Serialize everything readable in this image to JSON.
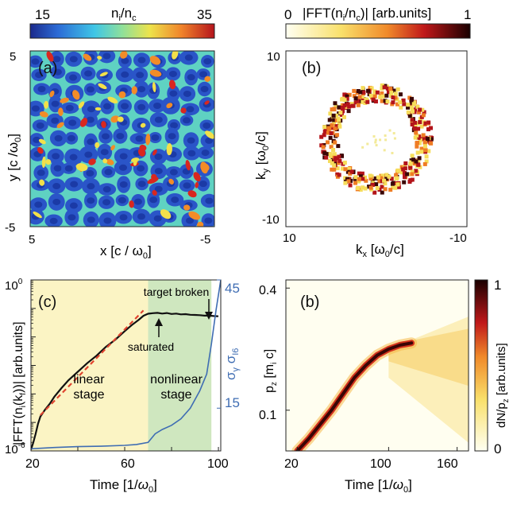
{
  "chart_data": [
    {
      "panel": "(a)",
      "type": "heatmap",
      "title": "",
      "colorbar": {
        "label_main": "n",
        "label_sub1": "i",
        "label_mid": "/n",
        "label_sub2": "c",
        "min": 15,
        "max": 35,
        "min_label": "15",
        "max_label": "35",
        "colormap": "jet"
      },
      "xlabel": "x [c / ω0]",
      "ylabel": "y [c / ω0]",
      "xlabel_parts": [
        "x [c / ω",
        "0",
        "]"
      ],
      "ylabel_parts": [
        "y [c /ω",
        "0",
        "]"
      ],
      "x_ticks": [
        "5",
        "-5"
      ],
      "y_ticks": [
        "5",
        "-5"
      ],
      "xlim": [
        5,
        -5
      ],
      "ylim": [
        -5,
        5
      ],
      "description_values": "cellular ion density filaments, values 15–35"
    },
    {
      "panel": "(b)",
      "type": "heatmap",
      "colorbar": {
        "label": "|FFT(n",
        "label_sub1": "i",
        "label_mid": "/n",
        "label_sub2": "c",
        "label_end": ")| [arb.units]",
        "min": 0,
        "max": 1,
        "min_label": "0",
        "max_label": "1",
        "colormap": "hot_r"
      },
      "xlabel_parts": [
        "k",
        "x",
        " [ω",
        "0",
        "/c]"
      ],
      "ylabel_parts": [
        "k",
        "y",
        " [ω",
        "0",
        "/c]"
      ],
      "x_ticks": [
        "10",
        "-10"
      ],
      "y_ticks": [
        "10",
        "-10"
      ],
      "xlim": [
        10,
        -10
      ],
      "ylim": [
        -10,
        10
      ],
      "ring_radius": 5.2
    },
    {
      "panel": "(c)",
      "type": "line",
      "xlabel_parts": [
        "Time [1/",
        "ω",
        "0",
        "]"
      ],
      "ylabel_left_parts": [
        "|FFT(n",
        "i",
        "(k",
        "f",
        "))|  [arb.units]"
      ],
      "ylabel_right_parts": [
        "σ",
        "γ",
        "  σ",
        "I6"
      ],
      "x_ticks": [
        "20",
        "60",
        "100"
      ],
      "xlim": [
        20,
        101
      ],
      "y_left": {
        "scale": "log",
        "lim": [
          1e-06,
          1
        ],
        "ticks": [
          {
            "base": "10",
            "exp": "0",
            "value": 1
          },
          {
            "base": "10",
            "exp": "-6",
            "value": 1e-06
          }
        ]
      },
      "y_right": {
        "lim": [
          5,
          45
        ],
        "ticks": [
          "45",
          "15"
        ],
        "tick_values": [
          45,
          15
        ]
      },
      "regions": [
        {
          "label_line1": "linear",
          "label_line2": "stage",
          "x0": 20,
          "x1": 70,
          "color": "#fbf4c4"
        },
        {
          "label_line1": "nonlinear",
          "label_line2": "stage",
          "x0": 70,
          "x1": 97,
          "color": "#cfe7bf"
        }
      ],
      "annotations": [
        {
          "text": "target broken",
          "x": 97,
          "y": 0.07
        },
        {
          "text": "saturated",
          "x": 74,
          "y": 0.045
        }
      ],
      "series": [
        {
          "axis": "left",
          "color": "#111111",
          "x": [
            20,
            21,
            22,
            23,
            24,
            26,
            28,
            30,
            33,
            36,
            40,
            44,
            48,
            52,
            56,
            60,
            63,
            66,
            68,
            70,
            72,
            74,
            76,
            78,
            80,
            82,
            84,
            86,
            88,
            90,
            92,
            94,
            96,
            98,
            100
          ],
          "y": [
            1.1e-06,
            2e-06,
            4e-06,
            9e-06,
            1.6e-05,
            2.8e-05,
            4.5e-05,
            8e-05,
            0.00016,
            0.0003,
            0.0006,
            0.0012,
            0.0022,
            0.0045,
            0.008,
            0.016,
            0.026,
            0.04,
            0.055,
            0.065,
            0.068,
            0.07,
            0.066,
            0.069,
            0.064,
            0.066,
            0.062,
            0.063,
            0.06,
            0.059,
            0.058,
            0.056,
            0.056,
            0.054,
            0.053
          ]
        },
        {
          "axis": "left",
          "color": "#e0442f",
          "dashed": true,
          "x": [
            24,
            68
          ],
          "y": [
            1.8e-05,
            0.085
          ]
        },
        {
          "axis": "right",
          "color": "#3f6db3",
          "x": [
            20,
            30,
            40,
            50,
            60,
            65,
            70,
            73,
            76,
            80,
            84,
            88,
            92,
            95,
            97,
            99,
            101
          ],
          "y": [
            5.5,
            5.8,
            6.0,
            6.1,
            6.3,
            6.5,
            7.0,
            9.0,
            10.0,
            11.0,
            12.5,
            15.0,
            19.0,
            23.0,
            30.0,
            38.0,
            45.0
          ]
        }
      ]
    },
    {
      "panel": "(b)",
      "type": "heatmap",
      "colorbar": {
        "label_parts": [
          "dN/p",
          "z",
          "  [arb.units]"
        ],
        "min": 0,
        "max": 1,
        "min_label": "0",
        "max_label": "1",
        "colormap": "hot_r"
      },
      "xlabel_parts": [
        "Time [1/",
        "ω",
        "0",
        "]"
      ],
      "ylabel_parts": [
        "p",
        "z",
        " [m",
        "i",
        " c]"
      ],
      "x_ticks": [
        "20",
        "100",
        "160"
      ],
      "x_tick_values": [
        20,
        100,
        160
      ],
      "xlim": [
        10,
        170
      ],
      "y_ticks": [
        "0.4",
        "0.1"
      ],
      "y_tick_values": [
        0.4,
        0.1
      ],
      "ylim": [
        0,
        0.42
      ],
      "ridge": {
        "t": [
          20,
          30,
          40,
          50,
          60,
          70,
          80,
          90,
          100,
          110,
          120
        ],
        "p": [
          0.0,
          0.03,
          0.065,
          0.1,
          0.14,
          0.18,
          0.21,
          0.235,
          0.25,
          0.26,
          0.265
        ]
      }
    }
  ]
}
